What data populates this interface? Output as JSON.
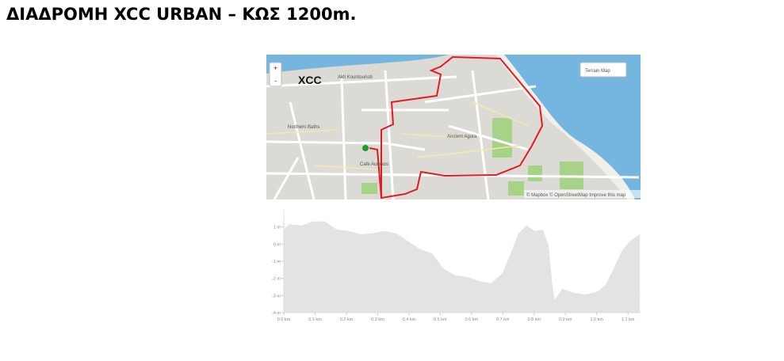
{
  "header": {
    "title": "ΔΙΑΔΡΟΜΗ XCC URBAN – ΚΩΣ 1200m."
  },
  "map": {
    "zoom_in": "+",
    "zoom_out": "-",
    "place_label": "XCC",
    "layer_button": "Terrain Map",
    "street_label": "Akti Kountourioti",
    "northern_baths": "Northern Baths",
    "ancient_agora": "Ancient Agora",
    "cafe": "Cafe Aumaos",
    "attribution": "© Mapbox © OpenStreetMap Improve this map"
  },
  "chart_data": {
    "type": "area",
    "color": "#e3e3e3",
    "xlim": [
      0,
      1.14
    ],
    "ylim": [
      -4,
      2
    ],
    "xticks": [
      {
        "value": 0,
        "label": "0.0 km"
      },
      {
        "value": 0.1,
        "label": "0.1 km"
      },
      {
        "value": 0.2,
        "label": "0.2 km"
      },
      {
        "value": 0.3,
        "label": "0.3 km"
      },
      {
        "value": 0.4,
        "label": "0.4 km"
      },
      {
        "value": 0.5,
        "label": "0.5 km"
      },
      {
        "value": 0.6,
        "label": "0.6 km"
      },
      {
        "value": 0.7,
        "label": "0.7 km"
      },
      {
        "value": 0.8,
        "label": "0.8 km"
      },
      {
        "value": 0.9,
        "label": "0.9 km"
      },
      {
        "value": 1.0,
        "label": "1.0 km"
      },
      {
        "value": 1.1,
        "label": "1.1 km"
      }
    ],
    "yticks": [
      {
        "value": 1,
        "label": "1 m"
      },
      {
        "value": 0,
        "label": "0 m"
      },
      {
        "value": -1,
        "label": "-1 m"
      },
      {
        "value": -2,
        "label": "-2 m"
      },
      {
        "value": -3,
        "label": "-3 m"
      },
      {
        "value": -4,
        "label": "-4 m"
      }
    ],
    "x": [
      0,
      0.018,
      0.056,
      0.094,
      0.131,
      0.169,
      0.207,
      0.245,
      0.283,
      0.321,
      0.359,
      0.397,
      0.435,
      0.473,
      0.511,
      0.549,
      0.587,
      0.625,
      0.662,
      0.7,
      0.726,
      0.751,
      0.776,
      0.802,
      0.827,
      0.845,
      0.857,
      0.865,
      0.89,
      0.928,
      0.966,
      1.004,
      1.029,
      1.054,
      1.08,
      1.105,
      1.138
    ],
    "values": [
      0.83,
      1.15,
      1.06,
      1.3,
      1.3,
      0.83,
      0.74,
      0.55,
      0.6,
      0.74,
      0.6,
      0.14,
      -0.32,
      -0.55,
      -1.48,
      -1.85,
      -1.94,
      -2.18,
      -2.31,
      -1.71,
      -0.55,
      0.6,
      1.06,
      0.74,
      0.83,
      -0.09,
      -2.4,
      -3.33,
      -2.64,
      -2.87,
      -2.96,
      -2.78,
      -2.4,
      -1.48,
      -0.46,
      0.14,
      0.55
    ]
  }
}
